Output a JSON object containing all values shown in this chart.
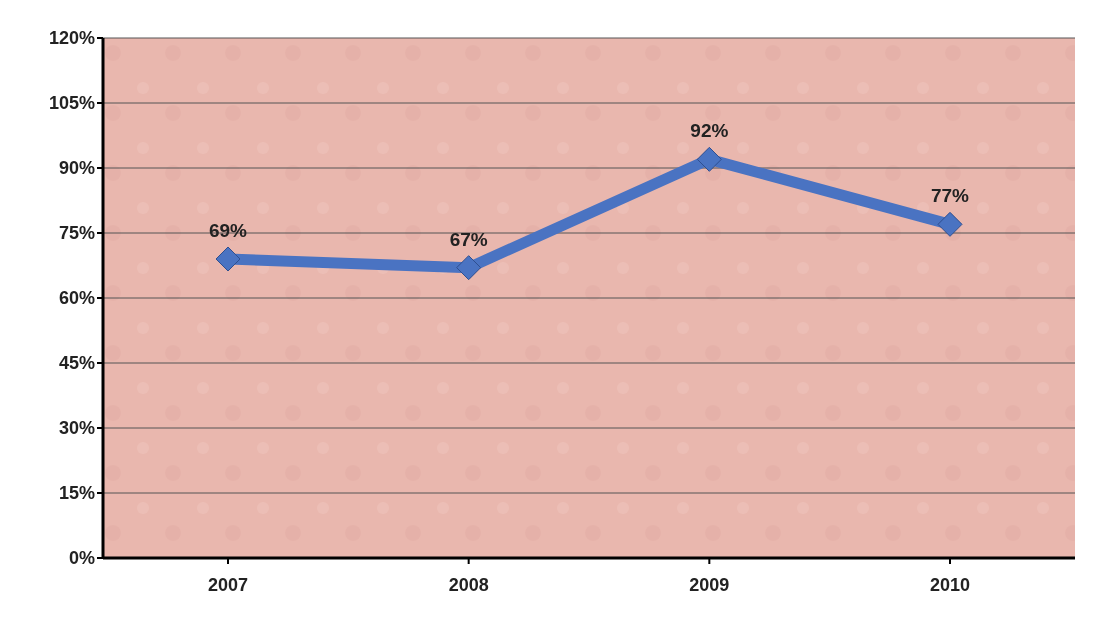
{
  "chart_data": {
    "type": "line",
    "categories": [
      "2007",
      "2008",
      "2009",
      "2010"
    ],
    "series": [
      {
        "color": "#4a73c2",
        "values": [
          69,
          67,
          92,
          77
        ],
        "value_labels": [
          "69%",
          "67%",
          "92%",
          "77%"
        ]
      }
    ],
    "ylim": [
      0,
      120
    ],
    "yticks": [
      {
        "value": 0,
        "label": "0%"
      },
      {
        "value": 15,
        "label": "15%"
      },
      {
        "value": 30,
        "label": "30%"
      },
      {
        "value": 45,
        "label": "45%"
      },
      {
        "value": 60,
        "label": "60%"
      },
      {
        "value": 75,
        "label": "75%"
      },
      {
        "value": 90,
        "label": "90%"
      },
      {
        "value": 105,
        "label": "105%"
      },
      {
        "value": 120,
        "label": "120%"
      }
    ],
    "grid": "y",
    "marker": "diamond",
    "line_style": "solid"
  }
}
